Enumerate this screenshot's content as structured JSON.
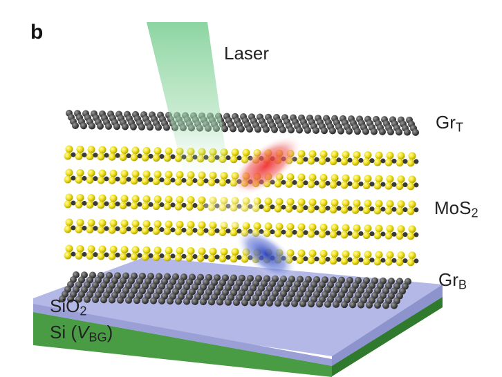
{
  "figure": {
    "panel_letter": "b",
    "laser_label": "Laser",
    "top_graphene": {
      "main": "Gr",
      "sub": "T"
    },
    "semiconductor": {
      "main": "MoS",
      "sub": "2"
    },
    "bottom_graphene": {
      "main": "Gr",
      "sub": "B"
    },
    "oxide": {
      "main": "SiO",
      "sub": "2"
    },
    "substrate": {
      "prefix": "Si (",
      "var": "V",
      "sub": "BG",
      "suffix": ")"
    }
  },
  "colors": {
    "laser_beam": "#5cc27a",
    "graphene_atom": "#4a4a4a",
    "sulfur_atom": "#f2e21c",
    "molybdenum_atom": "#3a3a3a",
    "electron_cloud": "#e23a3a",
    "hole_cloud": "#3a4fc8",
    "oxide_layer": "#a9aee0",
    "silicon_layer": "#3f8f3a"
  }
}
